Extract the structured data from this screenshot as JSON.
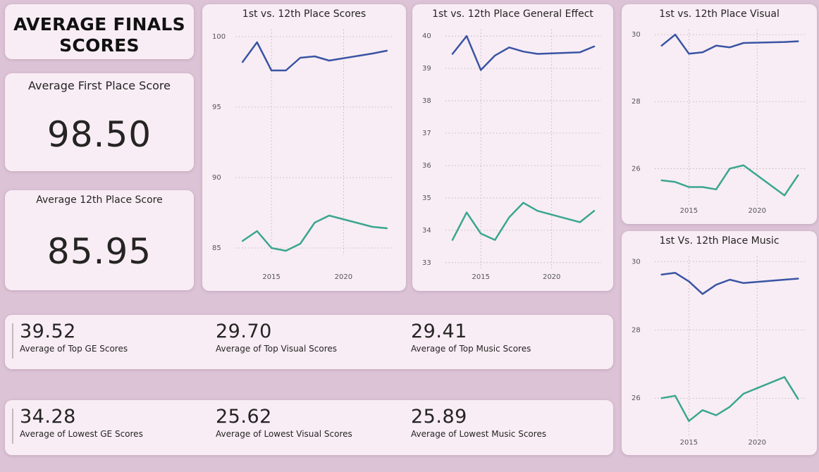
{
  "page_title": "AVERAGE FINALS SCORES",
  "kpis": {
    "first": {
      "label": "Average First Place Score",
      "value": "98.50"
    },
    "twelfth": {
      "label": "Average 12th Place Score",
      "value": "85.95"
    }
  },
  "top_row": [
    {
      "value": "39.52",
      "label": "Average of Top GE Scores"
    },
    {
      "value": "29.70",
      "label": "Average of Top Visual Scores"
    },
    {
      "value": "29.41",
      "label": "Average of Top Music Scores"
    }
  ],
  "low_row": [
    {
      "value": "34.28",
      "label": "Average of Lowest GE Scores"
    },
    {
      "value": "25.62",
      "label": "Average of Lowest Visual Scores"
    },
    {
      "value": "25.89",
      "label": "Average of Lowest Music Scores"
    }
  ],
  "colors": {
    "first_place": "#3a54a4",
    "twelfth_place": "#3aa68f",
    "card": "#f8edf4",
    "background": "#dcc3d6"
  },
  "chart_data": [
    {
      "id": "scores",
      "type": "line",
      "title": "1st vs. 12th Place Scores",
      "xticks": [
        2015,
        2020
      ],
      "yticks": [
        85,
        90,
        95,
        100
      ],
      "xlim": [
        2012.5,
        2023.5
      ],
      "ylim": [
        84.5,
        100.5
      ],
      "grid": true,
      "series": [
        {
          "color": "#3a54a4",
          "points": [
            [
              2013,
              98.2
            ],
            [
              2014,
              99.6
            ],
            [
              2015,
              97.6
            ],
            [
              2016,
              97.6
            ],
            [
              2017,
              98.5
            ],
            [
              2018,
              98.6
            ],
            [
              2019,
              98.3
            ],
            [
              2022,
              98.8
            ],
            [
              2023,
              99.0
            ]
          ]
        },
        {
          "color": "#3aa68f",
          "points": [
            [
              2013,
              85.5
            ],
            [
              2014,
              86.2
            ],
            [
              2015,
              85.0
            ],
            [
              2016,
              84.8
            ],
            [
              2017,
              85.3
            ],
            [
              2018,
              86.8
            ],
            [
              2019,
              87.3
            ],
            [
              2022,
              86.5
            ],
            [
              2023,
              86.4
            ]
          ]
        }
      ]
    },
    {
      "id": "ge",
      "type": "line",
      "title": "1st vs. 12th Place General Effect",
      "xticks": [
        2015,
        2020
      ],
      "yticks": [
        33,
        34,
        35,
        36,
        37,
        38,
        39,
        40
      ],
      "xlim": [
        2012.5,
        2023.5
      ],
      "ylim": [
        32.8,
        40.2
      ],
      "grid": true,
      "series": [
        {
          "color": "#3a54a4",
          "points": [
            [
              2013,
              39.45
            ],
            [
              2014,
              40.0
            ],
            [
              2015,
              38.95
            ],
            [
              2016,
              39.4
            ],
            [
              2017,
              39.65
            ],
            [
              2018,
              39.52
            ],
            [
              2019,
              39.45
            ],
            [
              2022,
              39.5
            ],
            [
              2023,
              39.68
            ]
          ]
        },
        {
          "color": "#3aa68f",
          "points": [
            [
              2013,
              33.7
            ],
            [
              2014,
              34.55
            ],
            [
              2015,
              33.9
            ],
            [
              2016,
              33.7
            ],
            [
              2017,
              34.4
            ],
            [
              2018,
              34.85
            ],
            [
              2019,
              34.6
            ],
            [
              2022,
              34.25
            ],
            [
              2023,
              34.6
            ]
          ]
        }
      ]
    },
    {
      "id": "visual",
      "type": "line",
      "title": "1st vs. 12th Place Visual",
      "xticks": [
        2015,
        2020
      ],
      "yticks": [
        26,
        28,
        30
      ],
      "xlim": [
        2012.5,
        2023.5
      ],
      "ylim": [
        24.85,
        30.15
      ],
      "grid": true,
      "series": [
        {
          "color": "#3a54a4",
          "points": [
            [
              2013,
              29.67
            ],
            [
              2014,
              30.0
            ],
            [
              2015,
              29.43
            ],
            [
              2016,
              29.47
            ],
            [
              2017,
              29.67
            ],
            [
              2018,
              29.62
            ],
            [
              2019,
              29.75
            ],
            [
              2022,
              29.78
            ],
            [
              2023,
              29.8
            ]
          ]
        },
        {
          "color": "#3aa68f",
          "points": [
            [
              2013,
              25.65
            ],
            [
              2014,
              25.6
            ],
            [
              2015,
              25.45
            ],
            [
              2016,
              25.45
            ],
            [
              2017,
              25.38
            ],
            [
              2018,
              26.0
            ],
            [
              2019,
              26.1
            ],
            [
              2022,
              25.2
            ],
            [
              2023,
              25.8
            ]
          ]
        }
      ]
    },
    {
      "id": "music",
      "type": "line",
      "title": "1st Vs. 12th Place Music",
      "xticks": [
        2015,
        2020
      ],
      "yticks": [
        26,
        28,
        30
      ],
      "xlim": [
        2012.5,
        2023.5
      ],
      "ylim": [
        24.85,
        30.15
      ],
      "grid": true,
      "series": [
        {
          "color": "#3a54a4",
          "points": [
            [
              2013,
              29.62
            ],
            [
              2014,
              29.67
            ],
            [
              2015,
              29.42
            ],
            [
              2016,
              29.05
            ],
            [
              2017,
              29.32
            ],
            [
              2018,
              29.47
            ],
            [
              2019,
              29.37
            ],
            [
              2022,
              29.47
            ],
            [
              2023,
              29.5
            ]
          ]
        },
        {
          "color": "#3aa68f",
          "points": [
            [
              2013,
              26.0
            ],
            [
              2014,
              26.07
            ],
            [
              2015,
              25.33
            ],
            [
              2016,
              25.65
            ],
            [
              2017,
              25.5
            ],
            [
              2018,
              25.75
            ],
            [
              2019,
              26.13
            ],
            [
              2022,
              26.62
            ],
            [
              2023,
              25.98
            ]
          ]
        }
      ]
    }
  ]
}
